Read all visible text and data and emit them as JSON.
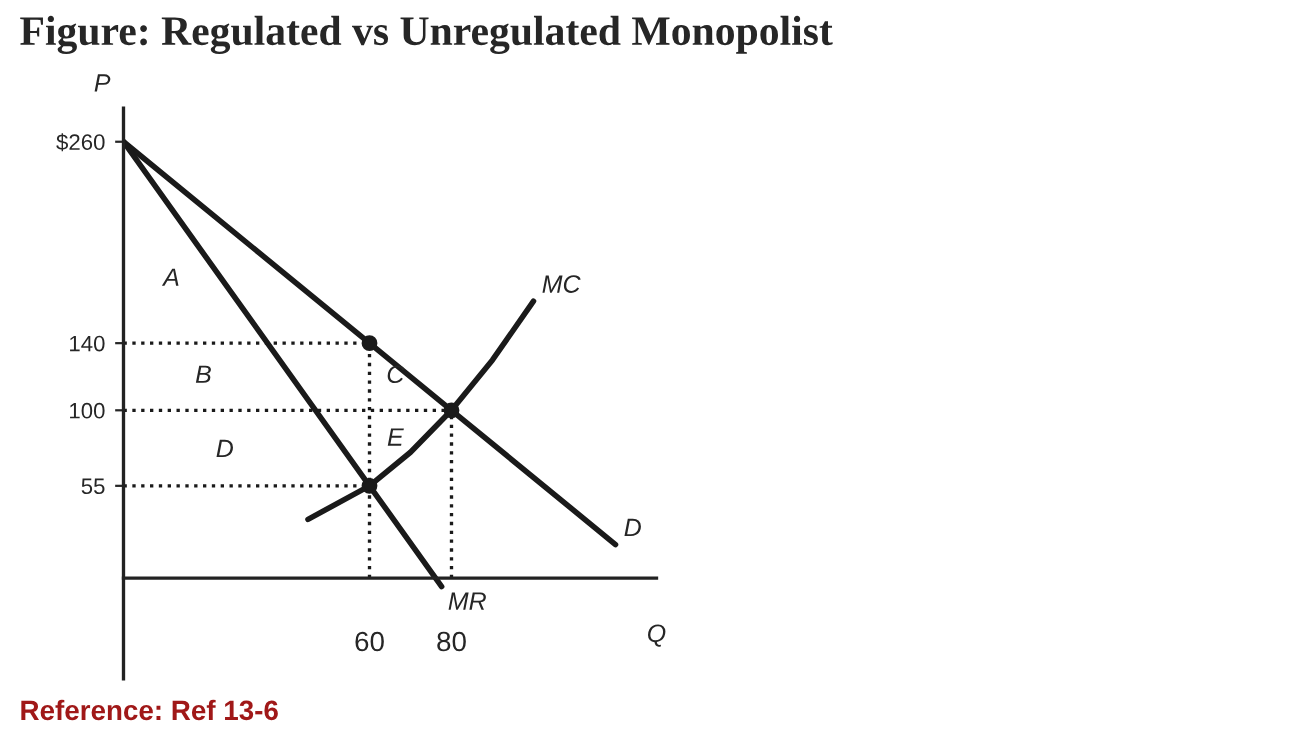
{
  "chart_data": {
    "type": "line",
    "title": "Figure: Regulated vs Unregulated Monopolist",
    "xlabel": "Q",
    "ylabel": "P",
    "xlim": [
      0,
      130
    ],
    "ylim": [
      -60,
      280
    ],
    "xticks": [
      60,
      80
    ],
    "yticks": [
      {
        "value": 260,
        "label": "$260"
      },
      140,
      100,
      55
    ],
    "grid": false,
    "series": [
      {
        "name": "D",
        "color": "#1a1a1a",
        "x": [
          0,
          60,
          80,
          120
        ],
        "values": [
          260,
          140,
          100,
          20
        ],
        "line_style": "solid",
        "marker": "none"
      },
      {
        "name": "MR",
        "color": "#1a1a1a",
        "x": [
          0,
          60,
          77.6
        ],
        "values": [
          260,
          55,
          -5
        ],
        "line_style": "solid",
        "marker": "none"
      },
      {
        "name": "MC",
        "color": "#1a1a1a",
        "x": [
          45,
          60,
          70,
          80,
          90,
          100
        ],
        "values": [
          35,
          55,
          75,
          100,
          130,
          165
        ],
        "line_style": "solid",
        "marker": "none"
      },
      {
        "color": "#1a1a1a",
        "x": [
          0,
          60
        ],
        "values": [
          140,
          140
        ],
        "line_style": "dotted",
        "marker": "none"
      },
      {
        "color": "#1a1a1a",
        "x": [
          0,
          80
        ],
        "values": [
          100,
          100
        ],
        "line_style": "dotted",
        "marker": "none"
      },
      {
        "color": "#1a1a1a",
        "x": [
          0,
          60
        ],
        "values": [
          55,
          55
        ],
        "line_style": "dotted",
        "marker": "none"
      },
      {
        "color": "#1a1a1a",
        "x": [
          60,
          60
        ],
        "values": [
          0,
          140
        ],
        "line_style": "dotted",
        "marker": "none"
      },
      {
        "color": "#1a1a1a",
        "x": [
          80,
          80
        ],
        "values": [
          0,
          100
        ],
        "line_style": "dotted",
        "marker": "none"
      },
      {
        "type": "scatter",
        "color": "#1a1a1a",
        "x": [
          60,
          80,
          60
        ],
        "values": [
          140,
          100,
          55
        ],
        "marker": "circle"
      }
    ],
    "annotations": [
      "A",
      "B",
      "C",
      "D",
      "E",
      "Reference: Ref 13-6"
    ]
  }
}
